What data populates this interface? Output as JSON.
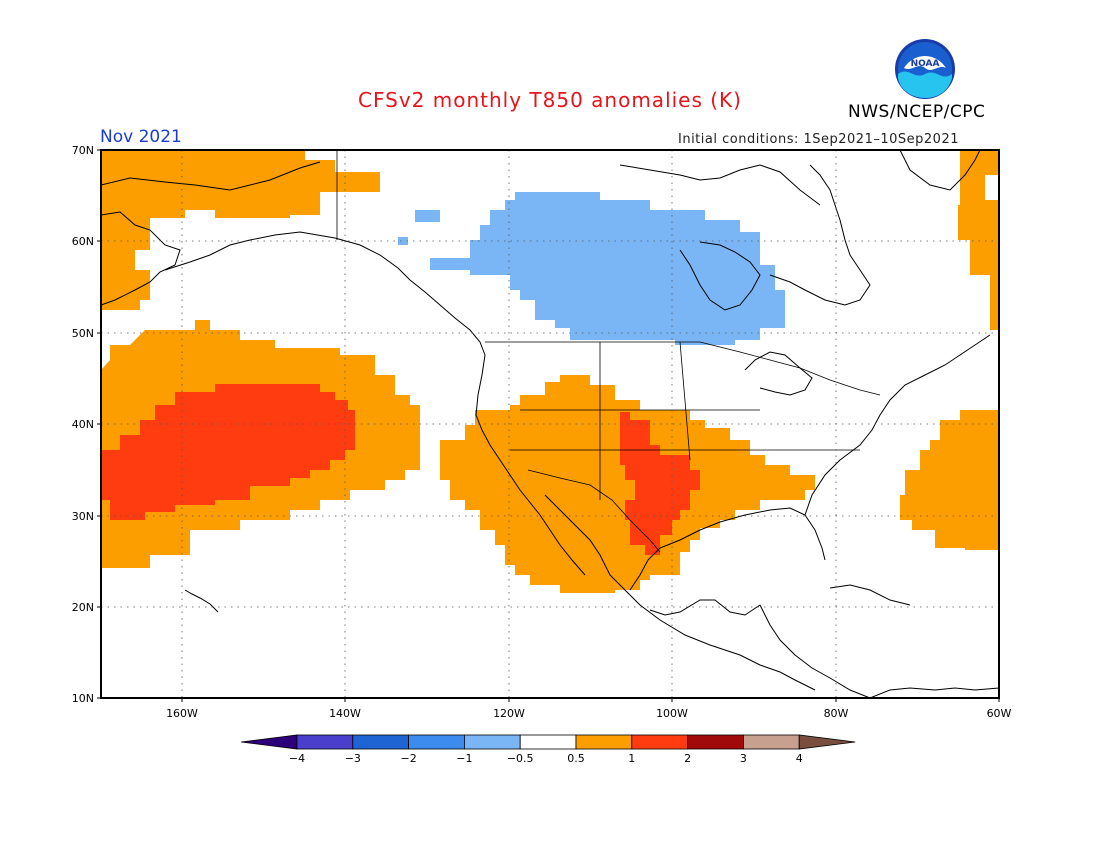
{
  "title": "CFSv2 monthly T850 anomalies (K)",
  "agency": "NWS/NCEP/CPC",
  "logo_text": "NOAA",
  "month": "Nov 2021",
  "initial_conditions": "Initial conditions: 1Sep2021–10Sep2021",
  "map": {
    "lon_range": [
      -170,
      -60
    ],
    "lat_range": [
      10,
      70
    ],
    "lat_labels": [
      "10N",
      "20N",
      "30N",
      "40N",
      "50N",
      "60N",
      "70N"
    ],
    "lon_labels": [
      "160W",
      "140W",
      "120W",
      "100W",
      "80W",
      "60W"
    ],
    "grid_style": "dotted"
  },
  "colorbar": {
    "bins": [
      {
        "color": "#2d007a"
      },
      {
        "color": "#4a3fcc"
      },
      {
        "color": "#1e64d2"
      },
      {
        "color": "#3c8cf0"
      },
      {
        "color": "#7ab6f5"
      },
      {
        "color": "#ffffff"
      },
      {
        "color": "#fd9e00"
      },
      {
        "color": "#ff3c10"
      },
      {
        "color": "#a00a0a"
      },
      {
        "color": "#c8a090"
      },
      {
        "color": "#7a4e3e"
      }
    ],
    "labels": [
      "−4",
      "−3",
      "−2",
      "−1",
      "−0.5",
      "0.5",
      "1",
      "2",
      "3",
      "4"
    ]
  },
  "anomaly_colors": {
    "warm_1": "#fd9e00",
    "warm_2": "#ff3c10",
    "cool_1": "#7ab6f5",
    "coastline": "#000000"
  }
}
